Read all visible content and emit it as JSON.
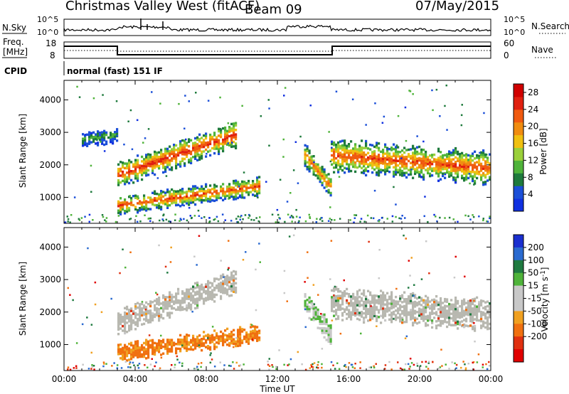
{
  "header": {
    "station": "Christmas Valley West (fitACF)",
    "beam": "Beam 09",
    "date": "07/May/2015"
  },
  "strip": {
    "nsky_label": "N.Sky",
    "nsky_ticks": [
      "10^5",
      "10^0"
    ],
    "nsearch_label": "N.Search",
    "nsearch_ticks": [
      "10^5",
      "10^0"
    ],
    "freq_label": [
      "Freq.",
      "[MHz]"
    ],
    "freq_ticks": [
      "18",
      "8"
    ],
    "nave_label": "Nave",
    "nave_ticks": [
      "60",
      "0"
    ],
    "cpid_label": "CPID",
    "cpid_text": "normal (fast) 151 IF"
  },
  "colors": {
    "power_scale": [
      "#1030e0",
      "#1b4fd8",
      "#1e7a3c",
      "#4fb33a",
      "#9ad03a",
      "#f0c010",
      "#f08c10",
      "#f05a10",
      "#e02010",
      "#d00000"
    ],
    "velocity_scale": [
      "#1a2fcf",
      "#2a6ad0",
      "#1f7a40",
      "#4fb33a",
      "#c8c8c8",
      "#c8c8c8",
      "#f0a020",
      "#f07010",
      "#e03010",
      "#e00000"
    ],
    "ground_scatter": "#b8b8b0"
  },
  "chart_data": [
    {
      "type": "heatmap",
      "panel": "power",
      "xlabel": "Time UT",
      "ylabel": "Slant Range [km]",
      "x_ticks": [
        "00:00",
        "04:00",
        "08:00",
        "12:00",
        "16:00",
        "20:00",
        "00:00"
      ],
      "y_ticks": [
        "1000",
        "2000",
        "3000",
        "4000"
      ],
      "ylim": [
        200,
        4600
      ],
      "colorbar": {
        "label": "Power [dB]",
        "ticks": [
          "28",
          "24",
          "20",
          "16",
          "12",
          "8",
          "4"
        ],
        "range": [
          0,
          30
        ]
      },
      "bands": [
        {
          "t_start": 3.0,
          "t_end": 9.7,
          "r_start": 1700,
          "r_end": 2950,
          "width": 350,
          "peak_dB": 26
        },
        {
          "t_start": 3.0,
          "t_end": 11.0,
          "r_start": 750,
          "r_end": 1350,
          "width": 250,
          "peak_dB": 24
        },
        {
          "t_start": 13.5,
          "t_end": 15.0,
          "r_start": 2300,
          "r_end": 1300,
          "width": 300,
          "peak_dB": 22
        },
        {
          "t_start": 15.0,
          "t_end": 24.0,
          "r_start": 2300,
          "r_end": 1900,
          "width": 450,
          "peak_dB": 24
        },
        {
          "t_start": 1.0,
          "t_end": 3.0,
          "r_start": 2800,
          "r_end": 2900,
          "width": 200,
          "peak_dB": 10
        }
      ]
    },
    {
      "type": "heatmap",
      "panel": "velocity",
      "xlabel": "Time UT",
      "ylabel": "Slant Range [km]",
      "x_ticks": [
        "00:00",
        "04:00",
        "08:00",
        "12:00",
        "16:00",
        "20:00",
        "00:00"
      ],
      "y_ticks": [
        "1000",
        "2000",
        "3000",
        "4000"
      ],
      "ylim": [
        200,
        4600
      ],
      "colorbar": {
        "label": "Velocity [m s^-1]",
        "ticks": [
          "200",
          "100",
          "50",
          "15",
          "-15",
          "-50",
          "-100",
          "-200"
        ],
        "range": [
          -250,
          250
        ]
      },
      "bands": [
        {
          "t_start": 3.0,
          "t_end": 9.7,
          "r_start": 1700,
          "r_end": 2950,
          "width": 350,
          "velocity": 0,
          "kind": "ground"
        },
        {
          "t_start": 3.0,
          "t_end": 11.0,
          "r_start": 750,
          "r_end": 1350,
          "width": 250,
          "velocity": -60,
          "kind": "ionospheric"
        },
        {
          "t_start": 13.5,
          "t_end": 15.0,
          "r_start": 2300,
          "r_end": 1300,
          "width": 300,
          "velocity": 40,
          "kind": "ionospheric"
        },
        {
          "t_start": 15.0,
          "t_end": 24.0,
          "r_start": 2300,
          "r_end": 1900,
          "width": 450,
          "velocity": 0,
          "kind": "ground"
        }
      ]
    }
  ]
}
